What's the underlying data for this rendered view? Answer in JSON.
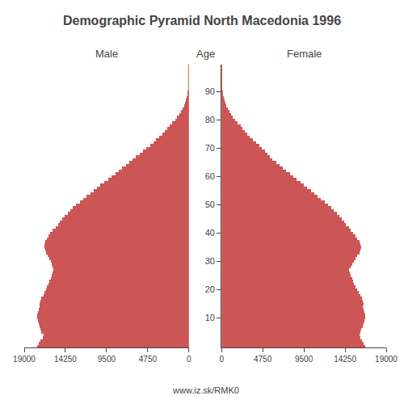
{
  "chart_data": {
    "type": "bar",
    "orientation": "horizontal",
    "title": "Demographic Pyramid North Macedonia 1996",
    "ylabel": "Age",
    "annotations": [
      "www.iz.sk/RMK0"
    ],
    "grid": false,
    "categories": [
      0,
      1,
      2,
      3,
      4,
      5,
      6,
      7,
      8,
      9,
      10,
      11,
      12,
      13,
      14,
      15,
      16,
      17,
      18,
      19,
      20,
      21,
      22,
      23,
      24,
      25,
      26,
      27,
      28,
      29,
      30,
      31,
      32,
      33,
      34,
      35,
      36,
      37,
      38,
      39,
      40,
      41,
      42,
      43,
      44,
      45,
      46,
      47,
      48,
      49,
      50,
      51,
      52,
      53,
      54,
      55,
      56,
      57,
      58,
      59,
      60,
      61,
      62,
      63,
      64,
      65,
      66,
      67,
      68,
      69,
      70,
      71,
      72,
      73,
      74,
      75,
      76,
      77,
      78,
      79,
      80,
      81,
      82,
      83,
      84,
      85,
      86,
      87,
      88,
      89,
      90,
      91,
      92,
      93,
      94,
      95,
      96,
      97,
      98,
      99
    ],
    "ylim": [
      -0.5,
      99.5
    ],
    "yticks": [
      10,
      20,
      30,
      40,
      50,
      60,
      70,
      80,
      90
    ],
    "series": [
      {
        "name": "Male",
        "color": "#cc5555",
        "xlim": [
          19000,
          0
        ],
        "xticks": [
          19000,
          14250,
          9500,
          4750,
          0
        ],
        "values": [
          17500,
          17300,
          17100,
          16900,
          16800,
          17000,
          17100,
          17200,
          17300,
          17400,
          17500,
          17500,
          17400,
          17300,
          17200,
          17200,
          17100,
          17000,
          16800,
          16700,
          16500,
          16400,
          16200,
          16100,
          15900,
          15800,
          15700,
          15600,
          15700,
          15800,
          15900,
          16100,
          16300,
          16500,
          16600,
          16700,
          16700,
          16600,
          16400,
          16200,
          16000,
          15700,
          15400,
          15100,
          14900,
          14600,
          14300,
          14000,
          13700,
          13400,
          13000,
          12600,
          12200,
          11800,
          11400,
          11000,
          10600,
          10200,
          9800,
          9300,
          8900,
          8500,
          8100,
          7700,
          7300,
          6900,
          6500,
          6100,
          5700,
          5300,
          4900,
          4500,
          4100,
          3800,
          3400,
          3100,
          2800,
          2500,
          2200,
          1900,
          1600,
          1350,
          1100,
          900,
          720,
          570,
          440,
          330,
          240,
          170,
          115,
          75,
          50,
          33,
          21,
          13,
          8,
          5,
          3,
          1
        ]
      },
      {
        "name": "Female",
        "color": "#cc5555",
        "xlim": [
          0,
          19000
        ],
        "xticks": [
          0,
          4750,
          9500,
          14250,
          19000
        ],
        "values": [
          16600,
          16400,
          16200,
          16000,
          15900,
          16000,
          16100,
          16300,
          16400,
          16500,
          16600,
          16600,
          16500,
          16400,
          16300,
          16400,
          16300,
          16200,
          16000,
          15800,
          15700,
          15500,
          15300,
          15200,
          15100,
          14900,
          14800,
          14700,
          14900,
          15100,
          15300,
          15500,
          15700,
          15900,
          16000,
          16100,
          16000,
          15900,
          15700,
          15500,
          15200,
          14900,
          14700,
          14400,
          14200,
          13900,
          13600,
          13300,
          13000,
          12700,
          12300,
          11900,
          11500,
          11100,
          10700,
          10300,
          9900,
          9500,
          9100,
          8700,
          8300,
          7900,
          7500,
          7100,
          6700,
          6300,
          5900,
          5600,
          5300,
          5000,
          4700,
          4400,
          4000,
          3600,
          3300,
          3000,
          2700,
          2400,
          2200,
          1900,
          1600,
          1350,
          1100,
          900,
          730,
          580,
          450,
          340,
          250,
          170,
          120,
          80,
          55,
          37,
          24,
          15,
          9,
          5,
          3,
          1
        ]
      }
    ]
  }
}
